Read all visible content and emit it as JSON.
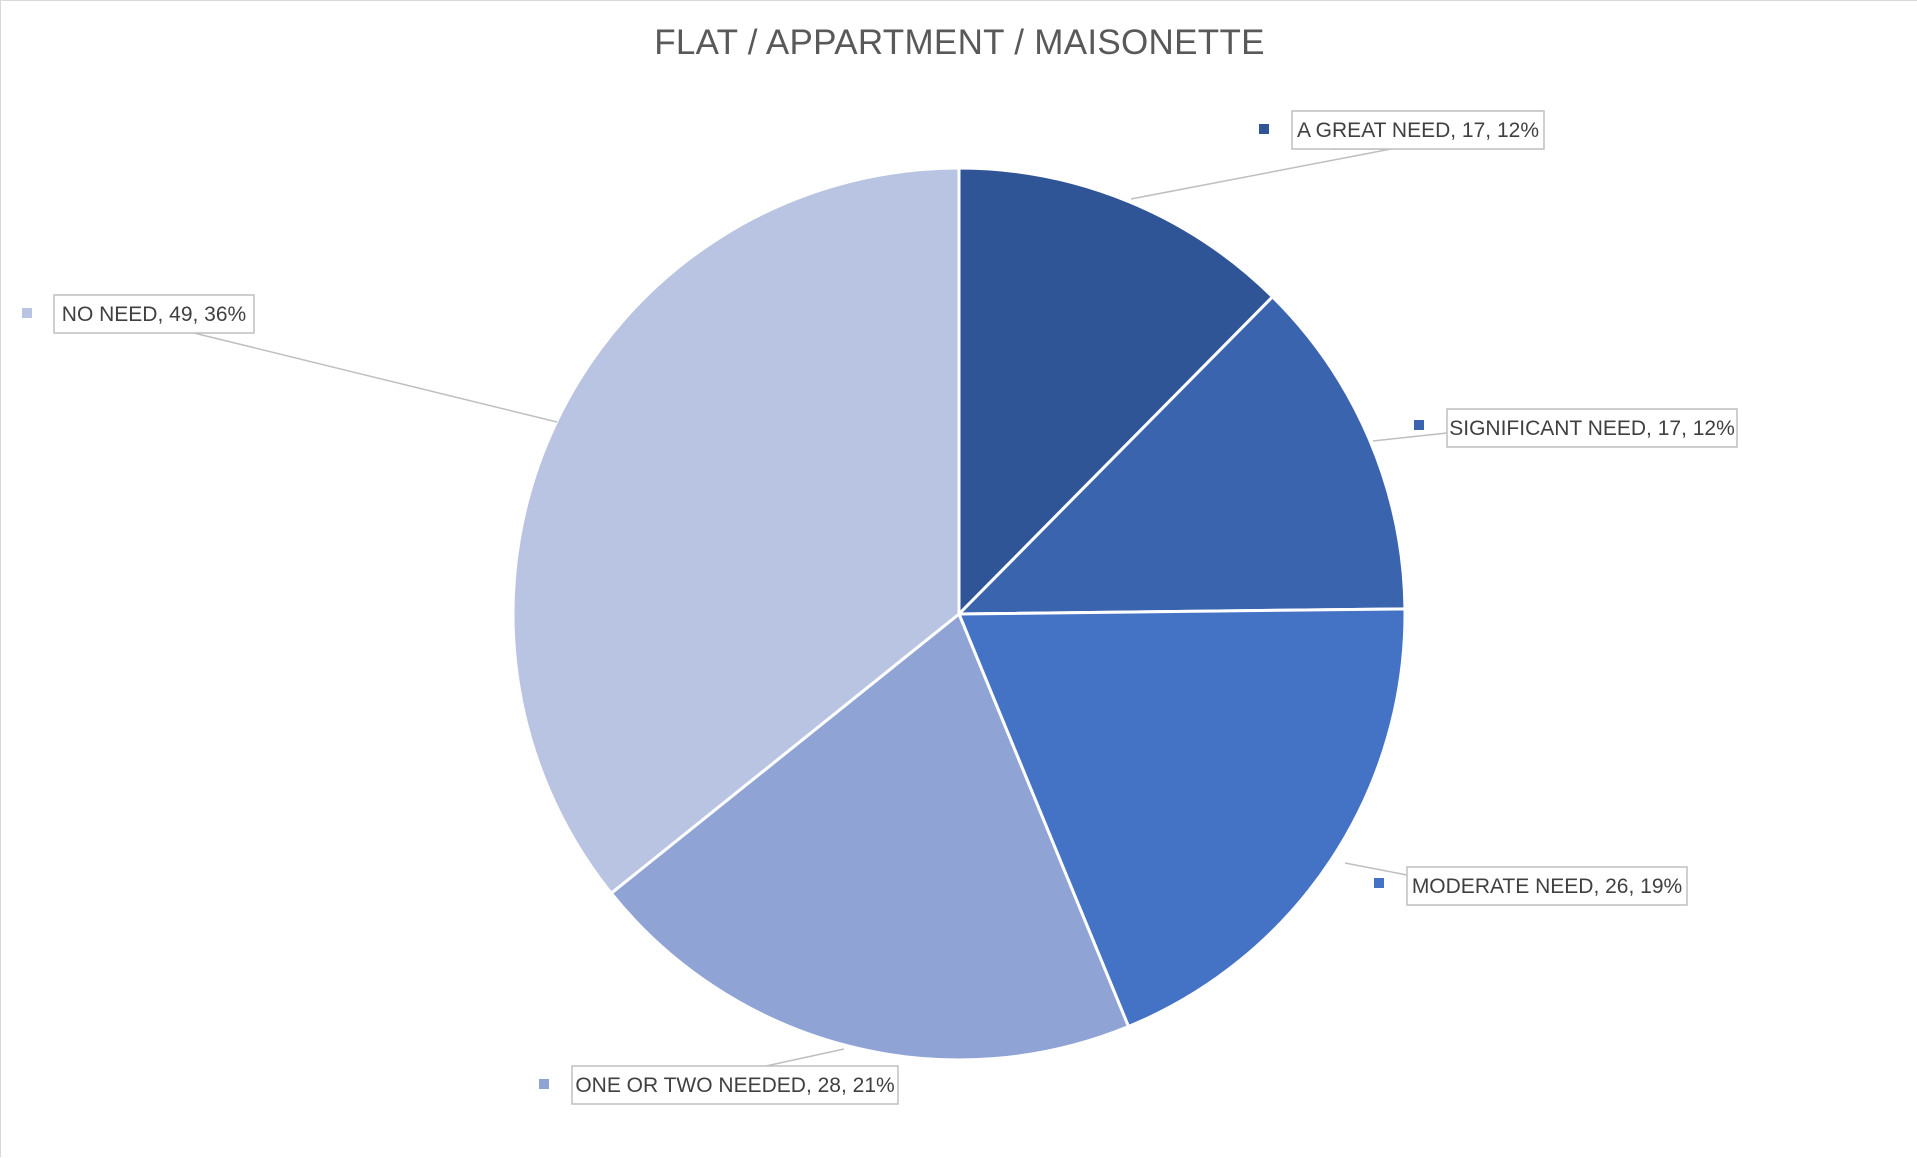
{
  "chart_data": {
    "type": "pie",
    "title": "FLAT / APPARTMENT / MAISONETTE",
    "categories": [
      "A GREAT NEED",
      "SIGNIFICANT NEED",
      "MODERATE NEED",
      "ONE OR TWO NEEDED",
      "NO NEED"
    ],
    "values": [
      17,
      17,
      26,
      28,
      49
    ],
    "percentages": [
      "12%",
      "12%",
      "19%",
      "21%",
      "36%"
    ],
    "colors": [
      "#2f5597",
      "#3b64ae",
      "#4472c4",
      "#8fa3d4",
      "#b9c3e2"
    ],
    "data_labels": [
      "A GREAT NEED, 17, 12%",
      "SIGNIFICANT NEED, 17, 12%",
      "MODERATE NEED, 26, 19%",
      "ONE OR TWO NEEDED, 28, 21%",
      "NO NEED, 49, 36%"
    ],
    "legend": "none"
  }
}
